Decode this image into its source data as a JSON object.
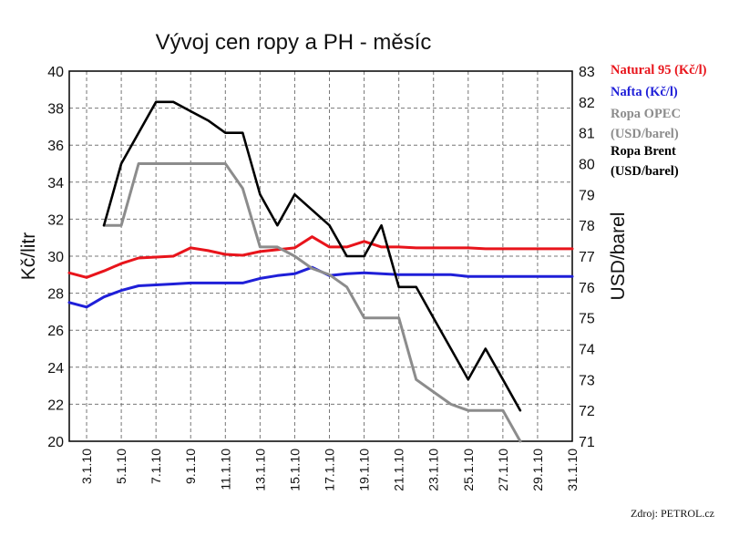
{
  "chart_data": {
    "type": "line",
    "title": "Vývoj cen ropy a PH - měsíc",
    "ylabel_left": "Kč/litr",
    "ylabel_right": "USD/barel",
    "ylim_left": [
      20,
      40
    ],
    "ylim_right": [
      71,
      83
    ],
    "yticks_left": [
      "20",
      "22",
      "24",
      "26",
      "28",
      "30",
      "32",
      "34",
      "36",
      "38",
      "40"
    ],
    "yticks_right": [
      "71",
      "72",
      "73",
      "74",
      "75",
      "76",
      "77",
      "78",
      "79",
      "80",
      "81",
      "82",
      "83"
    ],
    "xlim": [
      2,
      31
    ],
    "xticks": [
      "3.1.10",
      "5.1.10",
      "7.1.10",
      "9.1.10",
      "11.1.10",
      "13.1.10",
      "15.1.10",
      "17.1.10",
      "19.1.10",
      "21.1.10",
      "23.1.10",
      "25.1.10",
      "27.1.10",
      "29.1.10",
      "31.1.10"
    ],
    "xtick_values": [
      3,
      5,
      7,
      9,
      11,
      13,
      15,
      17,
      19,
      21,
      23,
      25,
      27,
      29,
      31
    ],
    "grid": true,
    "legend_position": "right",
    "source": "Zdroj: PETROL.cz",
    "series": [
      {
        "name": "Natural 95 (Kč/l)",
        "color": "#e8141b",
        "axis": "left",
        "x": [
          2,
          3,
          4,
          5,
          6,
          7,
          8,
          9,
          10,
          11,
          12,
          13,
          14,
          15,
          16,
          17,
          18,
          19,
          20,
          21,
          22,
          23,
          24,
          25,
          26,
          27,
          28,
          29,
          30,
          31
        ],
        "y": [
          29.1,
          28.85,
          29.2,
          29.6,
          29.9,
          29.95,
          30.0,
          30.45,
          30.3,
          30.1,
          30.05,
          30.25,
          30.35,
          30.45,
          31.05,
          30.5,
          30.5,
          30.8,
          30.5,
          30.5,
          30.45,
          30.45,
          30.45,
          30.45,
          30.4,
          30.4,
          30.4,
          30.4,
          30.4,
          30.4
        ]
      },
      {
        "name": "Nafta (Kč/l)",
        "color": "#1f1fd8",
        "axis": "left",
        "x": [
          2,
          3,
          4,
          5,
          6,
          7,
          8,
          9,
          10,
          11,
          12,
          13,
          14,
          15,
          16,
          17,
          18,
          19,
          20,
          21,
          22,
          23,
          24,
          25,
          26,
          27,
          28,
          29,
          30,
          31
        ],
        "y": [
          27.5,
          27.25,
          27.8,
          28.15,
          28.4,
          28.45,
          28.5,
          28.55,
          28.55,
          28.55,
          28.55,
          28.8,
          28.95,
          29.05,
          29.4,
          28.95,
          29.05,
          29.1,
          29.05,
          29.0,
          29.0,
          29.0,
          29.0,
          28.9,
          28.9,
          28.9,
          28.9,
          28.9,
          28.9,
          28.9
        ]
      },
      {
        "name": "Ropa OPEC (USD/barel)",
        "color": "#8c8c8c",
        "axis": "right",
        "x": [
          4,
          5,
          6,
          7,
          8,
          9,
          10,
          11,
          12,
          13,
          14,
          15,
          16,
          17,
          18,
          19,
          20,
          21,
          22,
          23,
          24,
          25,
          26,
          27,
          28
        ],
        "y": [
          78.0,
          78.0,
          80.0,
          80.0,
          80.0,
          80.0,
          80.0,
          80.0,
          79.2,
          77.3,
          77.3,
          77.0,
          76.6,
          76.4,
          76.0,
          75.0,
          75.0,
          75.0,
          73.0,
          72.6,
          72.2,
          72.0,
          72.0,
          72.0,
          71.0
        ]
      },
      {
        "name": "Ropa Brent (USD/barel)",
        "color": "#000000",
        "axis": "right",
        "x": [
          4,
          5,
          6,
          7,
          8,
          9,
          10,
          11,
          12,
          13,
          14,
          15,
          16,
          17,
          18,
          19,
          20,
          21,
          22,
          23,
          24,
          25,
          26,
          27,
          28
        ],
        "y": [
          78.0,
          80.0,
          81.0,
          82.0,
          82.0,
          81.7,
          81.4,
          81.0,
          81.0,
          79.0,
          78.0,
          79.0,
          78.5,
          78.0,
          77.0,
          77.0,
          78.0,
          76.0,
          76.0,
          75.0,
          74.0,
          73.0,
          74.0,
          73.0,
          72.0
        ]
      }
    ]
  }
}
